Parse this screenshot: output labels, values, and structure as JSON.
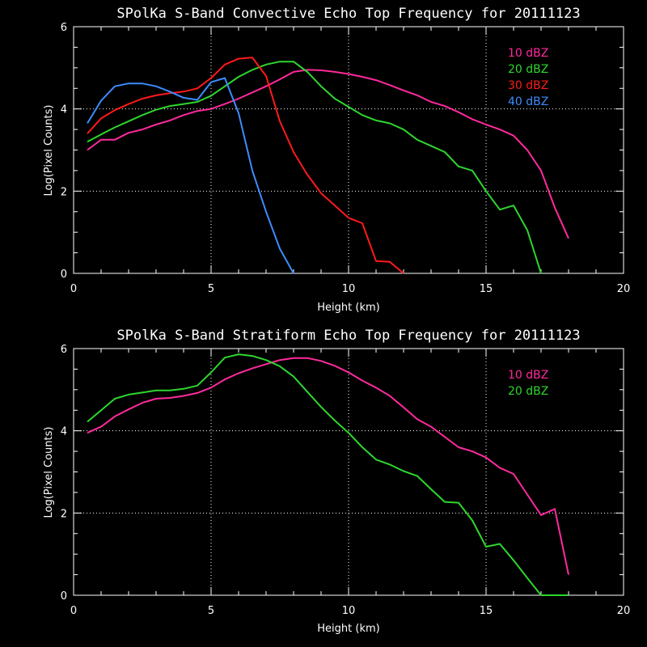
{
  "chart_data": [
    {
      "type": "line",
      "title": "SPolKa S-Band Convective Echo Top Frequency for 20111123",
      "xlabel": "Height (km)",
      "ylabel": "Log(Pixel Counts)",
      "xlim": [
        0,
        20
      ],
      "ylim": [
        0,
        6
      ],
      "xticks": [
        0,
        5,
        10,
        15,
        20
      ],
      "yticks": [
        0,
        2,
        4,
        6
      ],
      "grid": "dotted at x=5,10,15 and y=2,4",
      "legend": "top-right",
      "series": [
        {
          "name": "10 dBZ",
          "color": "#ff2a9c",
          "x": [
            0.5,
            1,
            1.5,
            2,
            2.5,
            3,
            3.5,
            4,
            4.5,
            5,
            5.5,
            6,
            6.5,
            7,
            7.5,
            8,
            8.5,
            9,
            9.5,
            10,
            10.5,
            11,
            11.5,
            12,
            12.5,
            13,
            13.5,
            14,
            14.5,
            15,
            15.5,
            16,
            16.5,
            17,
            17.5,
            18
          ],
          "y": [
            3.0,
            3.25,
            3.25,
            3.42,
            3.5,
            3.62,
            3.72,
            3.85,
            3.95,
            4.0,
            4.12,
            4.25,
            4.4,
            4.55,
            4.72,
            4.9,
            4.95,
            4.94,
            4.9,
            4.85,
            4.78,
            4.7,
            4.58,
            4.45,
            4.33,
            4.17,
            4.07,
            3.92,
            3.75,
            3.62,
            3.5,
            3.35,
            3.0,
            2.5,
            1.6,
            0.85
          ]
        },
        {
          "name": "20 dBZ",
          "color": "#2ed62e",
          "x": [
            0.5,
            1,
            1.5,
            2,
            2.5,
            3,
            3.5,
            4,
            4.5,
            5,
            5.5,
            6,
            6.5,
            7,
            7.5,
            8,
            8.5,
            9,
            9.5,
            10,
            10.5,
            11,
            11.5,
            12,
            12.5,
            13,
            13.5,
            14,
            14.5,
            15,
            15.5,
            16,
            16.5,
            17
          ],
          "y": [
            3.2,
            3.38,
            3.55,
            3.7,
            3.85,
            3.98,
            4.07,
            4.12,
            4.17,
            4.32,
            4.55,
            4.78,
            4.95,
            5.08,
            5.15,
            5.15,
            4.9,
            4.55,
            4.25,
            4.05,
            3.85,
            3.72,
            3.65,
            3.5,
            3.25,
            3.1,
            2.95,
            2.6,
            2.5,
            2.0,
            1.55,
            1.65,
            1.05,
            0.0
          ]
        },
        {
          "name": "30 dBZ",
          "color": "#ff1a1a",
          "x": [
            0.5,
            1,
            1.5,
            2,
            2.5,
            3,
            3.5,
            4,
            4.5,
            5,
            5.5,
            6,
            6.5,
            7,
            7.5,
            8,
            8.5,
            9,
            9.5,
            10,
            10.5,
            11,
            11.5,
            12
          ],
          "y": [
            3.4,
            3.77,
            3.97,
            4.12,
            4.25,
            4.33,
            4.38,
            4.42,
            4.5,
            4.75,
            5.08,
            5.22,
            5.25,
            4.8,
            3.7,
            2.95,
            2.4,
            1.95,
            1.65,
            1.35,
            1.22,
            0.3,
            0.28,
            0.0
          ]
        },
        {
          "name": "40 dBZ",
          "color": "#3d8cff",
          "x": [
            0.5,
            1,
            1.5,
            2,
            2.5,
            3,
            3.5,
            4,
            4.5,
            5,
            5.5,
            6,
            6.5,
            7,
            7.5,
            8
          ],
          "y": [
            3.65,
            4.2,
            4.55,
            4.62,
            4.62,
            4.55,
            4.42,
            4.27,
            4.22,
            4.65,
            4.75,
            3.9,
            2.5,
            1.5,
            0.6,
            0.0
          ]
        }
      ]
    },
    {
      "type": "line",
      "title": "SPolKa S-Band Stratiform Echo Top Frequency for 20111123",
      "xlabel": "Height (km)",
      "ylabel": "Log(Pixel Counts)",
      "xlim": [
        0,
        20
      ],
      "ylim": [
        0,
        6
      ],
      "xticks": [
        0,
        5,
        10,
        15,
        20
      ],
      "yticks": [
        0,
        2,
        4,
        6
      ],
      "grid": "dotted at x=5,10,15 and y=2,4",
      "legend": "top-right",
      "series": [
        {
          "name": "10 dBZ",
          "color": "#ff2a9c",
          "x": [
            0.5,
            1,
            1.5,
            2,
            2.5,
            3,
            3.5,
            4,
            4.5,
            5,
            5.5,
            6,
            6.5,
            7,
            7.5,
            8,
            8.5,
            9,
            9.5,
            10,
            10.5,
            11,
            11.5,
            12,
            12.5,
            13,
            13.5,
            14,
            14.5,
            15,
            15.5,
            16,
            16.5,
            17,
            17.5,
            18
          ],
          "y": [
            3.95,
            4.1,
            4.35,
            4.52,
            4.68,
            4.78,
            4.8,
            4.85,
            4.92,
            5.05,
            5.25,
            5.4,
            5.52,
            5.62,
            5.72,
            5.77,
            5.77,
            5.7,
            5.58,
            5.42,
            5.22,
            5.05,
            4.85,
            4.57,
            4.28,
            4.1,
            3.85,
            3.6,
            3.5,
            3.35,
            3.1,
            2.95,
            2.45,
            1.95,
            2.1,
            0.5
          ]
        },
        {
          "name": "20 dBZ",
          "color": "#2ed62e",
          "x": [
            0.5,
            1,
            1.5,
            2,
            2.5,
            3,
            3.5,
            4,
            4.5,
            5,
            5.5,
            6,
            6.5,
            7,
            7.5,
            8,
            8.5,
            9,
            9.5,
            10,
            10.5,
            11,
            11.5,
            12,
            12.5,
            13,
            13.5,
            14,
            14.5,
            15,
            15.5,
            16,
            16.5,
            17,
            17.5,
            18
          ],
          "y": [
            4.22,
            4.5,
            4.78,
            4.88,
            4.93,
            4.98,
            4.98,
            5.02,
            5.1,
            5.42,
            5.78,
            5.86,
            5.82,
            5.72,
            5.57,
            5.32,
            4.95,
            4.58,
            4.25,
            3.95,
            3.6,
            3.3,
            3.18,
            3.02,
            2.9,
            2.58,
            2.27,
            2.25,
            1.82,
            1.18,
            1.25,
            0.85,
            0.42,
            0.0,
            0.0,
            0.0
          ]
        }
      ]
    }
  ]
}
